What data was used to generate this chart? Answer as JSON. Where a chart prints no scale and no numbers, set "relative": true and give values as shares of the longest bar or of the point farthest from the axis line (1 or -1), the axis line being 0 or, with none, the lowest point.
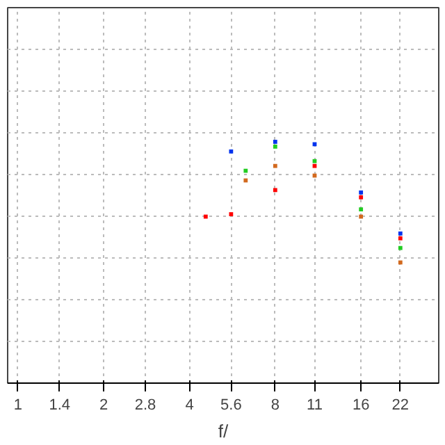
{
  "chart_data": {
    "type": "scatter",
    "xlabel": "f/",
    "log": "x",
    "relative": true,
    "grid": true,
    "marker": "square",
    "xlim": [
      0.92,
      30
    ],
    "xticks": [
      1,
      1.4,
      2,
      2.8,
      4,
      5.6,
      8,
      11,
      16,
      22
    ],
    "series": [
      {
        "color": "#ff0000",
        "x": [
          4.56,
          5.6,
          8,
          11,
          16,
          22
        ],
        "values": [
          0.69,
          0.7,
          0.8,
          0.9,
          0.77,
          0.6
        ]
      },
      {
        "color": "#d2691e",
        "x": [
          6.3,
          8,
          11,
          16,
          22
        ],
        "values": [
          0.84,
          0.9,
          0.86,
          0.69,
          0.5
        ]
      },
      {
        "color": "#22cc22",
        "x": [
          6.3,
          8,
          11,
          16,
          22
        ],
        "values": [
          0.88,
          0.98,
          0.92,
          0.72,
          0.56
        ]
      },
      {
        "color": "#0033ee",
        "x": [
          5.6,
          8,
          11,
          16,
          22
        ],
        "values": [
          0.96,
          1.0,
          0.99,
          0.79,
          0.62
        ]
      }
    ]
  }
}
